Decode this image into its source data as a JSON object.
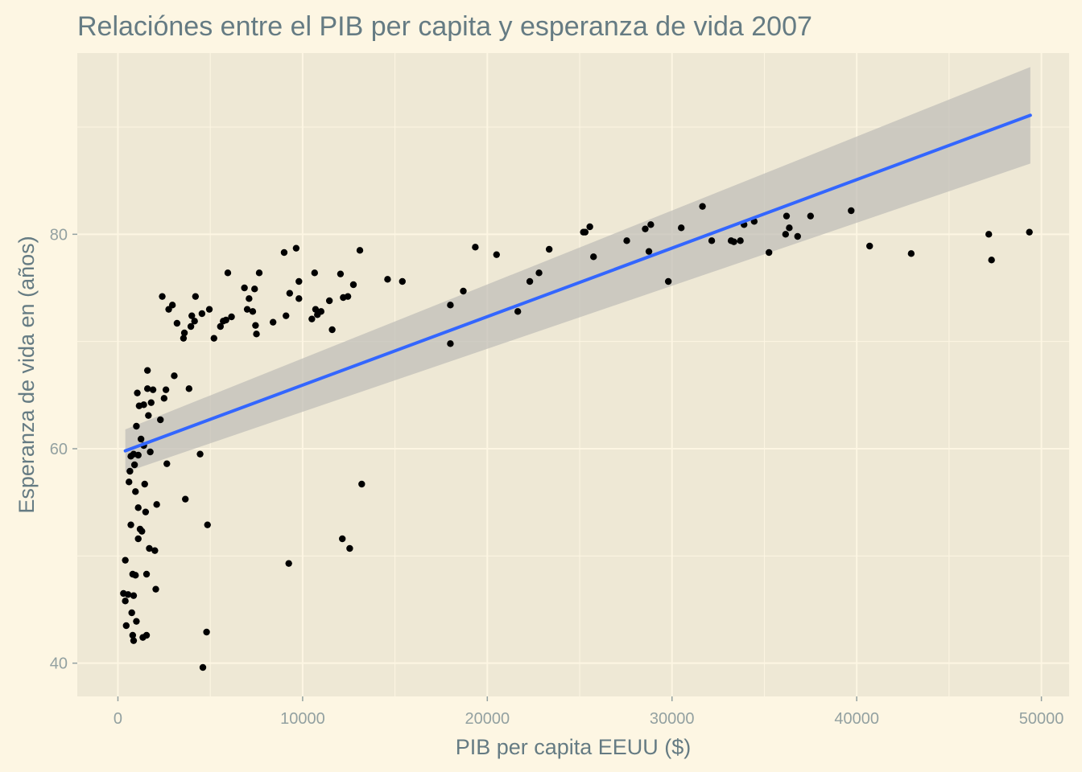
{
  "chart_data": {
    "type": "scatter",
    "title": "Relaciónes entre el PIB per capita y esperanza de vida 2007",
    "xlabel": "PIB per capita EEUU ($)",
    "ylabel": "Esperanza de vida en (años)",
    "xlim": [
      -2200,
      51500
    ],
    "ylim": [
      36.9,
      96.9
    ],
    "x_ticks": [
      0,
      10000,
      20000,
      30000,
      40000,
      50000
    ],
    "x_tick_labels": [
      "0",
      "10000",
      "20000",
      "30000",
      "40000",
      "50000"
    ],
    "y_ticks": [
      40,
      60,
      80
    ],
    "y_tick_labels": [
      "40",
      "60",
      "80"
    ],
    "grid": true,
    "legend": "none",
    "colors": {
      "page_background": "#fdf6e3",
      "panel_background": "#eee8d5",
      "grid": "#fdf6e3",
      "points": "#000000",
      "fit_line": "#3366ff",
      "confidence_band": "#bdbcb6",
      "title_text": "#657b83",
      "tick_text": "#93a1a1"
    },
    "fit": {
      "method": "linear",
      "x": [
        400,
        49400
      ],
      "y": [
        59.8,
        91.1
      ],
      "band_upper": [
        61.8,
        95.6
      ],
      "band_lower": [
        57.8,
        86.6
      ]
    },
    "points": [
      [
        300,
        46.5
      ],
      [
        400,
        45.8
      ],
      [
        450,
        43.5
      ],
      [
        400,
        49.6
      ],
      [
        550,
        46.4
      ],
      [
        600,
        56.9
      ],
      [
        650,
        57.9
      ],
      [
        700,
        52.9
      ],
      [
        700,
        59.3
      ],
      [
        750,
        44.7
      ],
      [
        800,
        48.3
      ],
      [
        800,
        42.6
      ],
      [
        850,
        42.1
      ],
      [
        850,
        46.3
      ],
      [
        850,
        59.5
      ],
      [
        900,
        58.5
      ],
      [
        950,
        56.0
      ],
      [
        950,
        48.2
      ],
      [
        1000,
        62.1
      ],
      [
        1000,
        43.9
      ],
      [
        1050,
        65.2
      ],
      [
        1100,
        54.5
      ],
      [
        1100,
        51.6
      ],
      [
        1100,
        59.4
      ],
      [
        1150,
        64.0
      ],
      [
        1200,
        52.5
      ],
      [
        1250,
        60.9
      ],
      [
        1300,
        52.3
      ],
      [
        1350,
        42.4
      ],
      [
        1400,
        64.1
      ],
      [
        1400,
        60.3
      ],
      [
        1450,
        56.7
      ],
      [
        1500,
        54.1
      ],
      [
        1550,
        42.6
      ],
      [
        1550,
        48.3
      ],
      [
        1600,
        67.3
      ],
      [
        1600,
        65.6
      ],
      [
        1650,
        63.1
      ],
      [
        1700,
        50.7
      ],
      [
        1750,
        59.7
      ],
      [
        1800,
        64.3
      ],
      [
        1900,
        65.5
      ],
      [
        2000,
        50.5
      ],
      [
        2050,
        46.9
      ],
      [
        2100,
        54.8
      ],
      [
        2300,
        62.7
      ],
      [
        2400,
        74.2
      ],
      [
        2500,
        64.7
      ],
      [
        2600,
        65.5
      ],
      [
        2650,
        58.6
      ],
      [
        2750,
        73.0
      ],
      [
        2950,
        73.4
      ],
      [
        3050,
        66.8
      ],
      [
        3200,
        71.7
      ],
      [
        3550,
        70.3
      ],
      [
        3600,
        70.8
      ],
      [
        3650,
        55.3
      ],
      [
        3850,
        65.6
      ],
      [
        3950,
        71.4
      ],
      [
        4000,
        72.4
      ],
      [
        4150,
        71.9
      ],
      [
        4200,
        74.2
      ],
      [
        4450,
        59.5
      ],
      [
        4550,
        72.6
      ],
      [
        4600,
        39.6
      ],
      [
        4800,
        42.9
      ],
      [
        4850,
        52.9
      ],
      [
        4950,
        73.0
      ],
      [
        5200,
        70.3
      ],
      [
        5550,
        71.4
      ],
      [
        5700,
        71.9
      ],
      [
        5850,
        72.0
      ],
      [
        5950,
        76.4
      ],
      [
        6150,
        72.3
      ],
      [
        6850,
        75.0
      ],
      [
        7000,
        73.0
      ],
      [
        7100,
        74.0
      ],
      [
        7300,
        72.8
      ],
      [
        7400,
        74.9
      ],
      [
        7450,
        71.5
      ],
      [
        7500,
        70.7
      ],
      [
        7650,
        76.4
      ],
      [
        8400,
        71.8
      ],
      [
        9000,
        78.3
      ],
      [
        9100,
        72.4
      ],
      [
        9250,
        49.3
      ],
      [
        9300,
        74.5
      ],
      [
        9650,
        78.7
      ],
      [
        9800,
        74.0
      ],
      [
        9800,
        75.6
      ],
      [
        10500,
        72.1
      ],
      [
        10650,
        76.4
      ],
      [
        10700,
        73.0
      ],
      [
        10800,
        72.5
      ],
      [
        11000,
        72.8
      ],
      [
        11450,
        73.8
      ],
      [
        11600,
        71.1
      ],
      [
        12050,
        76.3
      ],
      [
        12150,
        51.6
      ],
      [
        12200,
        74.1
      ],
      [
        12450,
        74.2
      ],
      [
        12550,
        50.7
      ],
      [
        12750,
        75.3
      ],
      [
        13100,
        78.5
      ],
      [
        13200,
        56.7
      ],
      [
        14600,
        75.8
      ],
      [
        15400,
        75.6
      ],
      [
        18000,
        73.4
      ],
      [
        18000,
        69.8
      ],
      [
        18700,
        74.7
      ],
      [
        19350,
        78.8
      ],
      [
        20500,
        78.1
      ],
      [
        21650,
        72.8
      ],
      [
        22300,
        75.6
      ],
      [
        22800,
        76.4
      ],
      [
        23350,
        78.6
      ],
      [
        25200,
        80.2
      ],
      [
        25300,
        80.2
      ],
      [
        25550,
        80.7
      ],
      [
        25750,
        77.9
      ],
      [
        27550,
        79.4
      ],
      [
        28550,
        80.5
      ],
      [
        28750,
        78.4
      ],
      [
        28850,
        80.9
      ],
      [
        29800,
        75.6
      ],
      [
        30500,
        80.6
      ],
      [
        31650,
        82.6
      ],
      [
        32150,
        79.4
      ],
      [
        33200,
        79.4
      ],
      [
        33350,
        79.3
      ],
      [
        33700,
        79.4
      ],
      [
        33900,
        80.9
      ],
      [
        34450,
        81.2
      ],
      [
        35250,
        78.3
      ],
      [
        36150,
        80.0
      ],
      [
        36200,
        81.7
      ],
      [
        36350,
        80.6
      ],
      [
        36800,
        79.8
      ],
      [
        37500,
        81.7
      ],
      [
        39700,
        82.2
      ],
      [
        40700,
        78.9
      ],
      [
        42950,
        78.2
      ],
      [
        47150,
        80.0
      ],
      [
        47300,
        77.6
      ],
      [
        49350,
        80.2
      ]
    ]
  }
}
